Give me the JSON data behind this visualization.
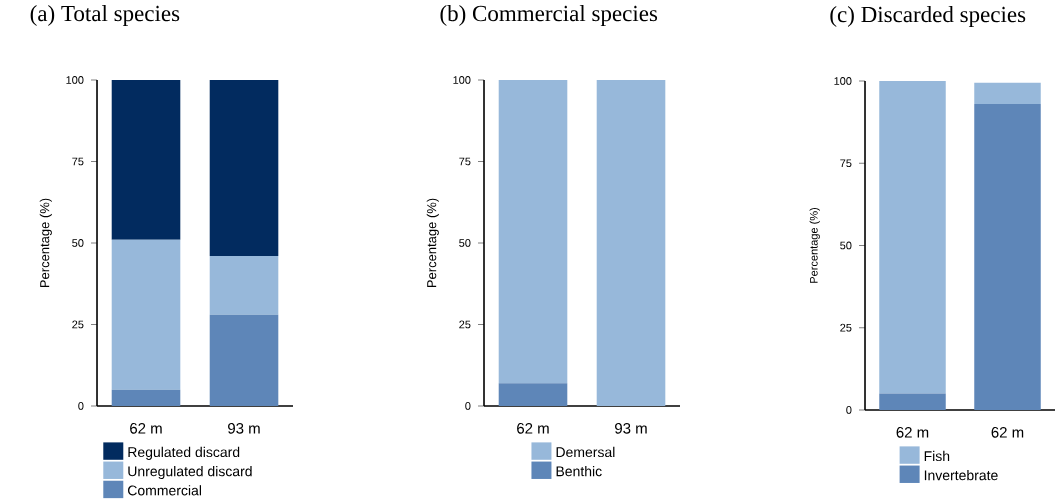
{
  "chart_data": [
    {
      "type": "bar",
      "stacked": true,
      "title": "(a) Total species",
      "ylabel": "Percentage (%)",
      "categories": [
        "62 m",
        "93 m"
      ],
      "ylim": [
        0,
        100
      ],
      "yticks": [
        0,
        25,
        50,
        75,
        100
      ],
      "legend": "bottom",
      "series": [
        {
          "name": "Commercial",
          "color": "#5e86b8",
          "values": [
            5,
            28
          ]
        },
        {
          "name": "Unregulated discard",
          "color": "#97b8da",
          "values": [
            46,
            18
          ]
        },
        {
          "name": "Regulated discard",
          "color": "#022b5f",
          "values": [
            49,
            54
          ]
        }
      ]
    },
    {
      "type": "bar",
      "stacked": true,
      "title": "(b) Commercial species",
      "ylabel": "Percentage (%)",
      "categories": [
        "62 m",
        "93 m"
      ],
      "ylim": [
        0,
        100
      ],
      "yticks": [
        0,
        25,
        50,
        75,
        100
      ],
      "legend": "bottom",
      "series": [
        {
          "name": "Benthic",
          "color": "#5e86b8",
          "values": [
            7,
            0
          ]
        },
        {
          "name": "Demersal",
          "color": "#97b8da",
          "values": [
            93,
            100
          ]
        }
      ]
    },
    {
      "type": "bar",
      "stacked": true,
      "title": "(c) Discarded species",
      "ylabel": "Percentage (%)",
      "categories": [
        "62 m",
        "62 m"
      ],
      "ylim": [
        0,
        100
      ],
      "yticks": [
        0,
        25,
        50,
        75,
        100
      ],
      "legend": "bottom",
      "series": [
        {
          "name": "Invertebrate",
          "color": "#5e86b8",
          "values": [
            5,
            93
          ]
        },
        {
          "name": "Fish",
          "color": "#97b8da",
          "values": [
            95,
            6.5
          ]
        }
      ]
    }
  ]
}
